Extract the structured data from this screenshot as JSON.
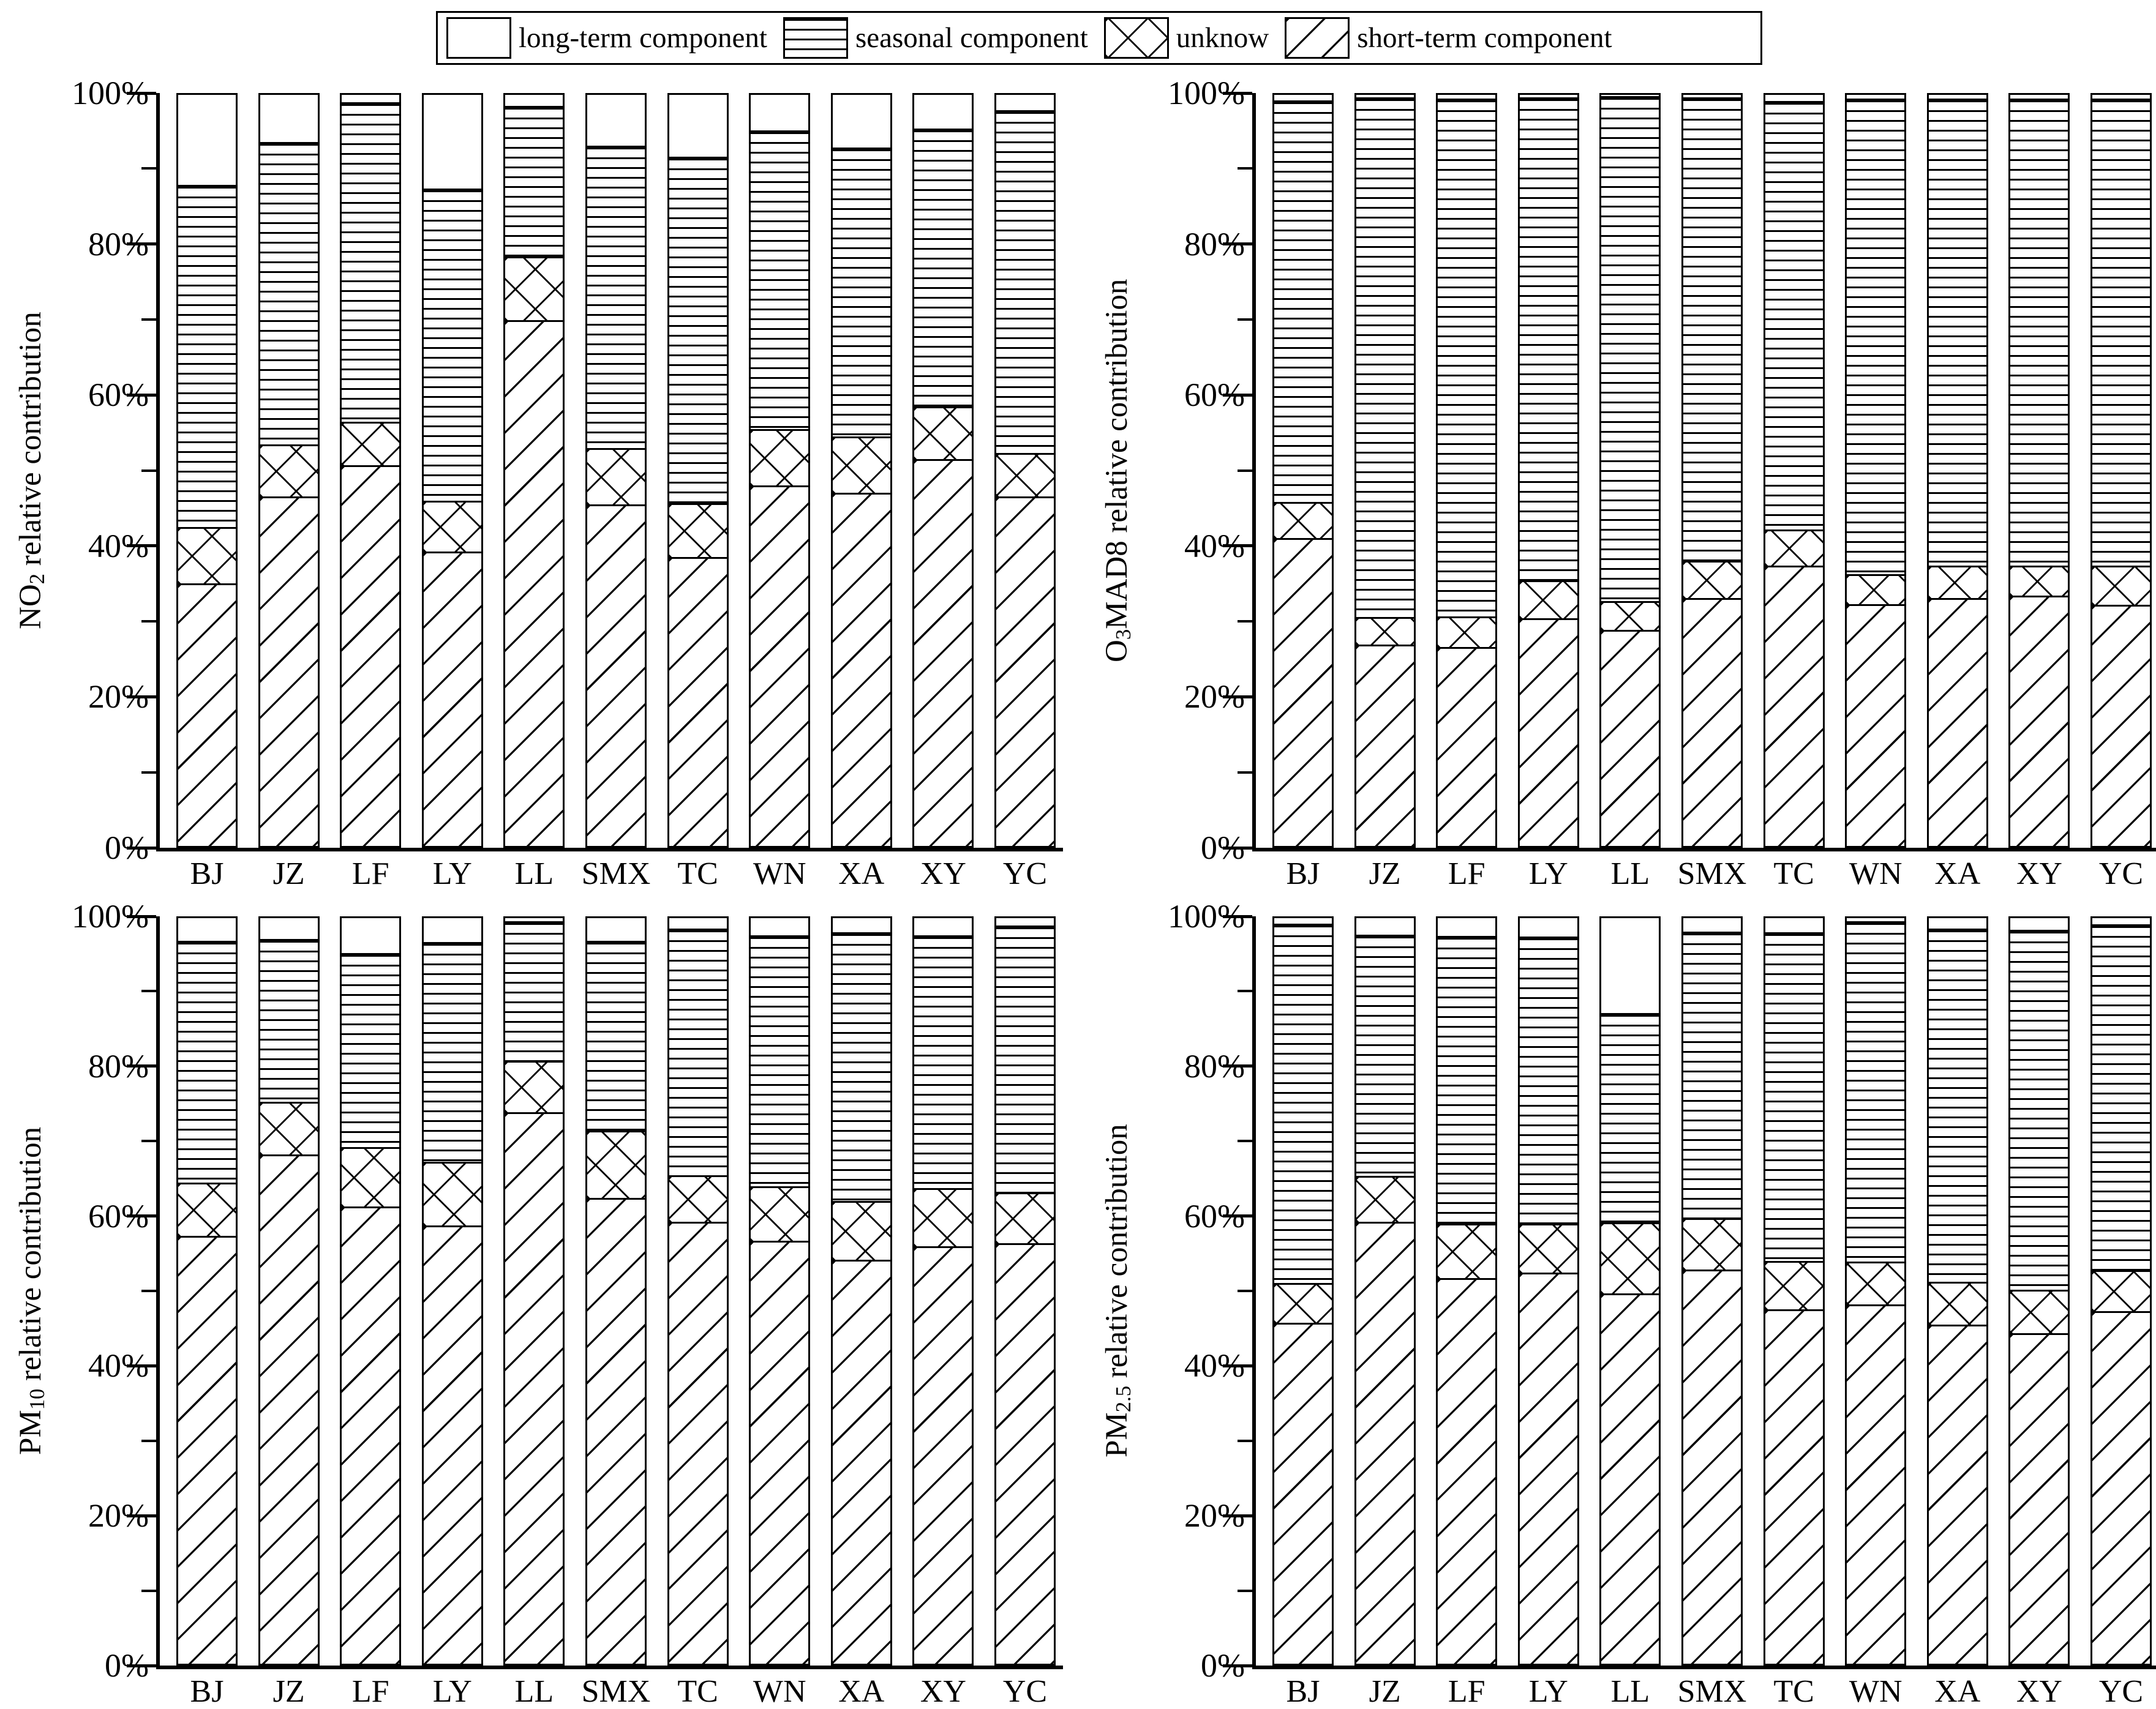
{
  "legend": {
    "items": [
      {
        "label": "long-term component",
        "pattern": "blank"
      },
      {
        "label": "seasonal component",
        "pattern": "seasonal"
      },
      {
        "label": "unknow",
        "pattern": "unknow"
      },
      {
        "label": "short-term component",
        "pattern": "short"
      }
    ]
  },
  "axis": {
    "y_tick_labels": [
      "100%",
      "80%",
      "60%",
      "40%",
      "20%",
      "0%"
    ],
    "y_tick_values": [
      100,
      80,
      60,
      40,
      20,
      0
    ],
    "y_minor_values": [
      90,
      70,
      50,
      30,
      10
    ]
  },
  "colors": {
    "foreground": "#000000",
    "background": "#ffffff"
  },
  "chart_data": [
    {
      "type": "bar",
      "stacked": true,
      "units": "percent",
      "ylabel": "NO2 relative contribution",
      "ylabel_parts": {
        "pre": "NO",
        "sub": "2",
        "post": " relative contribution"
      },
      "ylim": [
        0,
        100
      ],
      "grid": false,
      "categories": [
        "BJ",
        "JZ",
        "LF",
        "LY",
        "LL",
        "SMX",
        "TC",
        "WN",
        "XA",
        "XY",
        "YC"
      ],
      "series": [
        {
          "name": "short-term component",
          "values": [
            35.0,
            46.5,
            50.7,
            39.2,
            70.0,
            45.5,
            38.5,
            48.0,
            47.0,
            51.5,
            46.5
          ]
        },
        {
          "name": "unknow",
          "values": [
            7.5,
            7.0,
            5.8,
            6.8,
            8.5,
            7.5,
            7.1,
            7.5,
            7.5,
            7.0,
            5.8
          ]
        },
        {
          "name": "seasonal component",
          "values": [
            45.5,
            40.2,
            42.5,
            41.5,
            20.0,
            40.2,
            46.2,
            39.8,
            38.5,
            37.0,
            45.7
          ]
        },
        {
          "name": "long-term component",
          "values": [
            12.0,
            6.3,
            1.0,
            12.5,
            1.5,
            6.8,
            8.2,
            4.7,
            7.0,
            4.5,
            2.0
          ]
        }
      ]
    },
    {
      "type": "bar",
      "stacked": true,
      "units": "percent",
      "ylabel": "O3MAD8 relative contribution",
      "ylabel_parts": {
        "pre": "O",
        "sub": "3",
        "post": "MAD8 relative contribution"
      },
      "ylim": [
        0,
        100
      ],
      "grid": false,
      "categories": [
        "BJ",
        "JZ",
        "LF",
        "LY",
        "LL",
        "SMX",
        "TC",
        "WN",
        "XA",
        "XY",
        "YC"
      ],
      "series": [
        {
          "name": "short-term component",
          "values": [
            41.0,
            26.8,
            26.5,
            30.3,
            28.8,
            33.0,
            37.3,
            32.2,
            33.0,
            33.3,
            32.1
          ]
        },
        {
          "name": "unknow",
          "values": [
            4.8,
            3.7,
            4.1,
            5.1,
            3.8,
            5.0,
            4.8,
            4.0,
            4.3,
            4.0,
            5.2
          ]
        },
        {
          "name": "seasonal component",
          "values": [
            53.5,
            69.2,
            68.9,
            64.3,
            67.2,
            61.7,
            57.1,
            63.3,
            62.2,
            62.2,
            62.2
          ]
        },
        {
          "name": "long-term component",
          "values": [
            0.7,
            0.3,
            0.5,
            0.3,
            0.2,
            0.3,
            0.8,
            0.5,
            0.5,
            0.5,
            0.5
          ]
        }
      ]
    },
    {
      "type": "bar",
      "stacked": true,
      "units": "percent",
      "ylabel": "PM10 relative contribution",
      "ylabel_parts": {
        "pre": "PM",
        "sub": "10",
        "post": " relative contribution"
      },
      "ylim": [
        0,
        100
      ],
      "grid": false,
      "categories": [
        "BJ",
        "JZ",
        "LF",
        "LY",
        "LL",
        "SMX",
        "TC",
        "WN",
        "XA",
        "XY",
        "YC"
      ],
      "series": [
        {
          "name": "short-term component",
          "values": [
            57.4,
            68.3,
            61.3,
            58.8,
            74.0,
            62.5,
            59.3,
            56.7,
            54.2,
            56.0,
            56.4
          ]
        },
        {
          "name": "unknow",
          "values": [
            7.1,
            7.1,
            8.0,
            8.5,
            6.9,
            9.0,
            6.2,
            7.3,
            7.9,
            7.8,
            6.8
          ]
        },
        {
          "name": "seasonal component",
          "values": [
            32.5,
            21.8,
            26.0,
            29.5,
            18.7,
            25.5,
            33.1,
            33.7,
            36.0,
            33.9,
            35.8
          ]
        },
        {
          "name": "long-term component",
          "values": [
            3.0,
            2.8,
            4.7,
            3.2,
            0.4,
            3.0,
            1.4,
            2.3,
            1.9,
            2.3,
            1.0
          ]
        }
      ]
    },
    {
      "type": "bar",
      "stacked": true,
      "units": "percent",
      "ylabel": "PM2.5 relative contribution",
      "ylabel_parts": {
        "pre": "PM",
        "sub": "2.5",
        "post": " relative contribution"
      },
      "ylim": [
        0,
        100
      ],
      "grid": false,
      "categories": [
        "BJ",
        "JZ",
        "LF",
        "LY",
        "LL",
        "SMX",
        "TC",
        "WN",
        "XA",
        "XY",
        "YC"
      ],
      "series": [
        {
          "name": "short-term component",
          "values": [
            45.7,
            59.3,
            51.7,
            52.5,
            49.7,
            52.9,
            47.5,
            48.2,
            45.5,
            44.3,
            47.3
          ]
        },
        {
          "name": "unknow",
          "values": [
            5.4,
            6.1,
            7.3,
            6.5,
            9.5,
            6.9,
            6.5,
            5.7,
            5.7,
            5.9,
            5.5
          ]
        },
        {
          "name": "seasonal component",
          "values": [
            48.2,
            32.4,
            38.6,
            38.5,
            28.1,
            38.4,
            44.1,
            45.7,
            47.4,
            48.2,
            46.4
          ]
        },
        {
          "name": "long-term component",
          "values": [
            0.7,
            2.2,
            2.4,
            2.5,
            12.7,
            1.8,
            1.9,
            0.4,
            1.4,
            1.6,
            0.8
          ]
        }
      ]
    }
  ]
}
